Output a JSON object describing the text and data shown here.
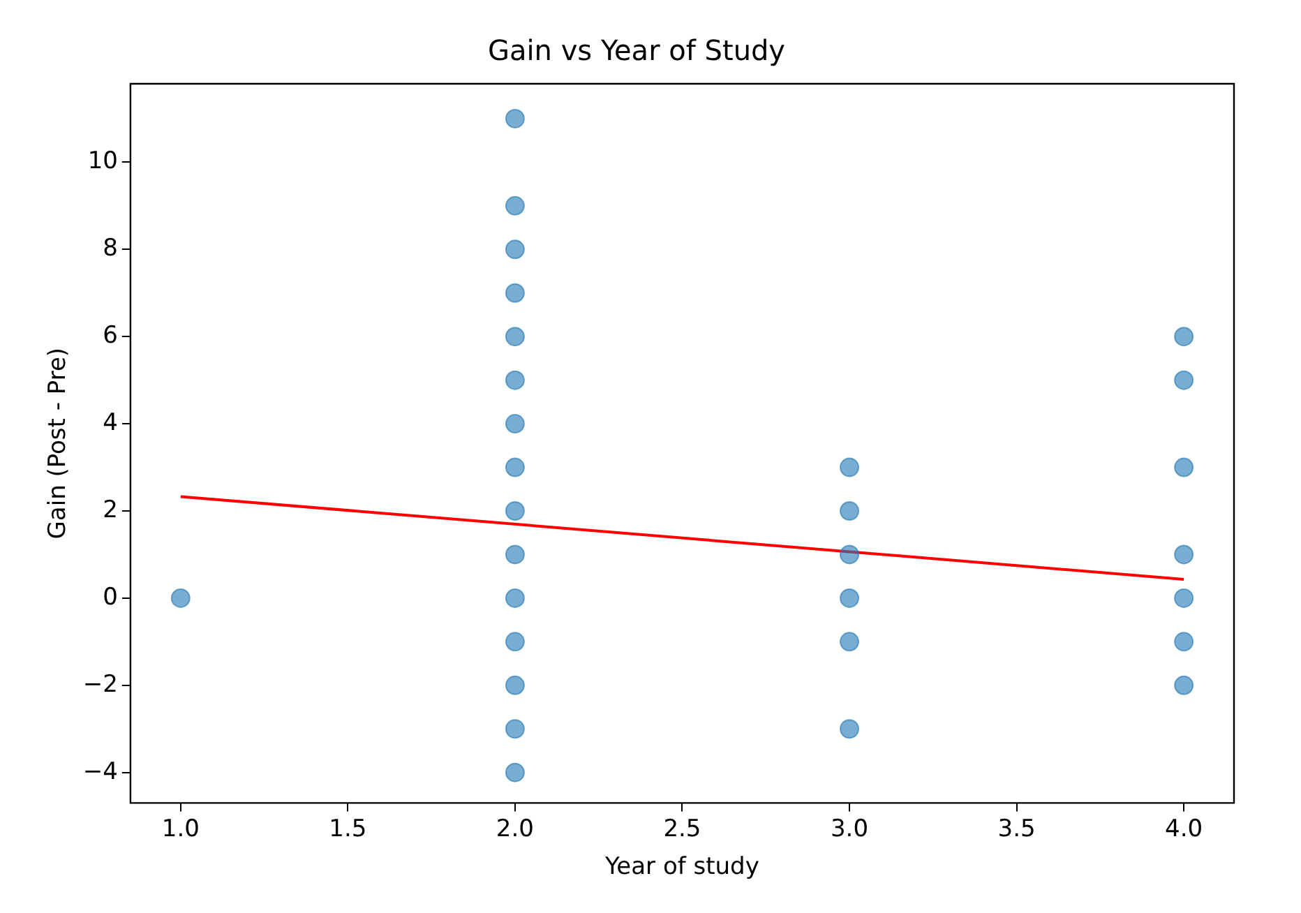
{
  "chart_data": {
    "type": "scatter",
    "title": "Gain vs Year of Study",
    "xlabel": "Year of study",
    "ylabel": "Gain (Post - Pre)",
    "xlim": [
      0.85,
      4.15
    ],
    "xticks": [
      {
        "value": 1,
        "label": "1.0"
      },
      {
        "value": 1.5,
        "label": "1.5"
      },
      {
        "value": 2,
        "label": "2.0"
      },
      {
        "value": 2.5,
        "label": "2.5"
      },
      {
        "value": 3,
        "label": "3.0"
      },
      {
        "value": 3.5,
        "label": "3.5"
      },
      {
        "value": 4,
        "label": "4.0"
      }
    ],
    "ylim": [
      -4.7,
      11.8
    ],
    "yticks": [
      -4,
      -2,
      0,
      2,
      4,
      6,
      8,
      10
    ],
    "grid": false,
    "legend": false,
    "series": [
      {
        "type": "scatter",
        "marker": "circle",
        "color": "#1f77b4",
        "x": [
          1,
          2,
          2,
          2,
          2,
          2,
          2,
          2,
          2,
          2,
          2,
          2,
          2,
          2,
          2,
          2,
          3,
          3,
          3,
          3,
          3,
          3,
          4,
          4,
          4,
          4,
          4,
          4,
          4
        ],
        "values": [
          0,
          11,
          9,
          8,
          7,
          6,
          5,
          4,
          3,
          2,
          1,
          0,
          -1,
          -2,
          -3,
          -4,
          3,
          2,
          1,
          0,
          -1,
          -3,
          6,
          5,
          3,
          1,
          0,
          -1,
          -2
        ]
      },
      {
        "type": "line",
        "marker": "none",
        "color": "#ff0000",
        "x": [
          1,
          4
        ],
        "values": [
          2.33,
          0.43
        ]
      }
    ]
  }
}
